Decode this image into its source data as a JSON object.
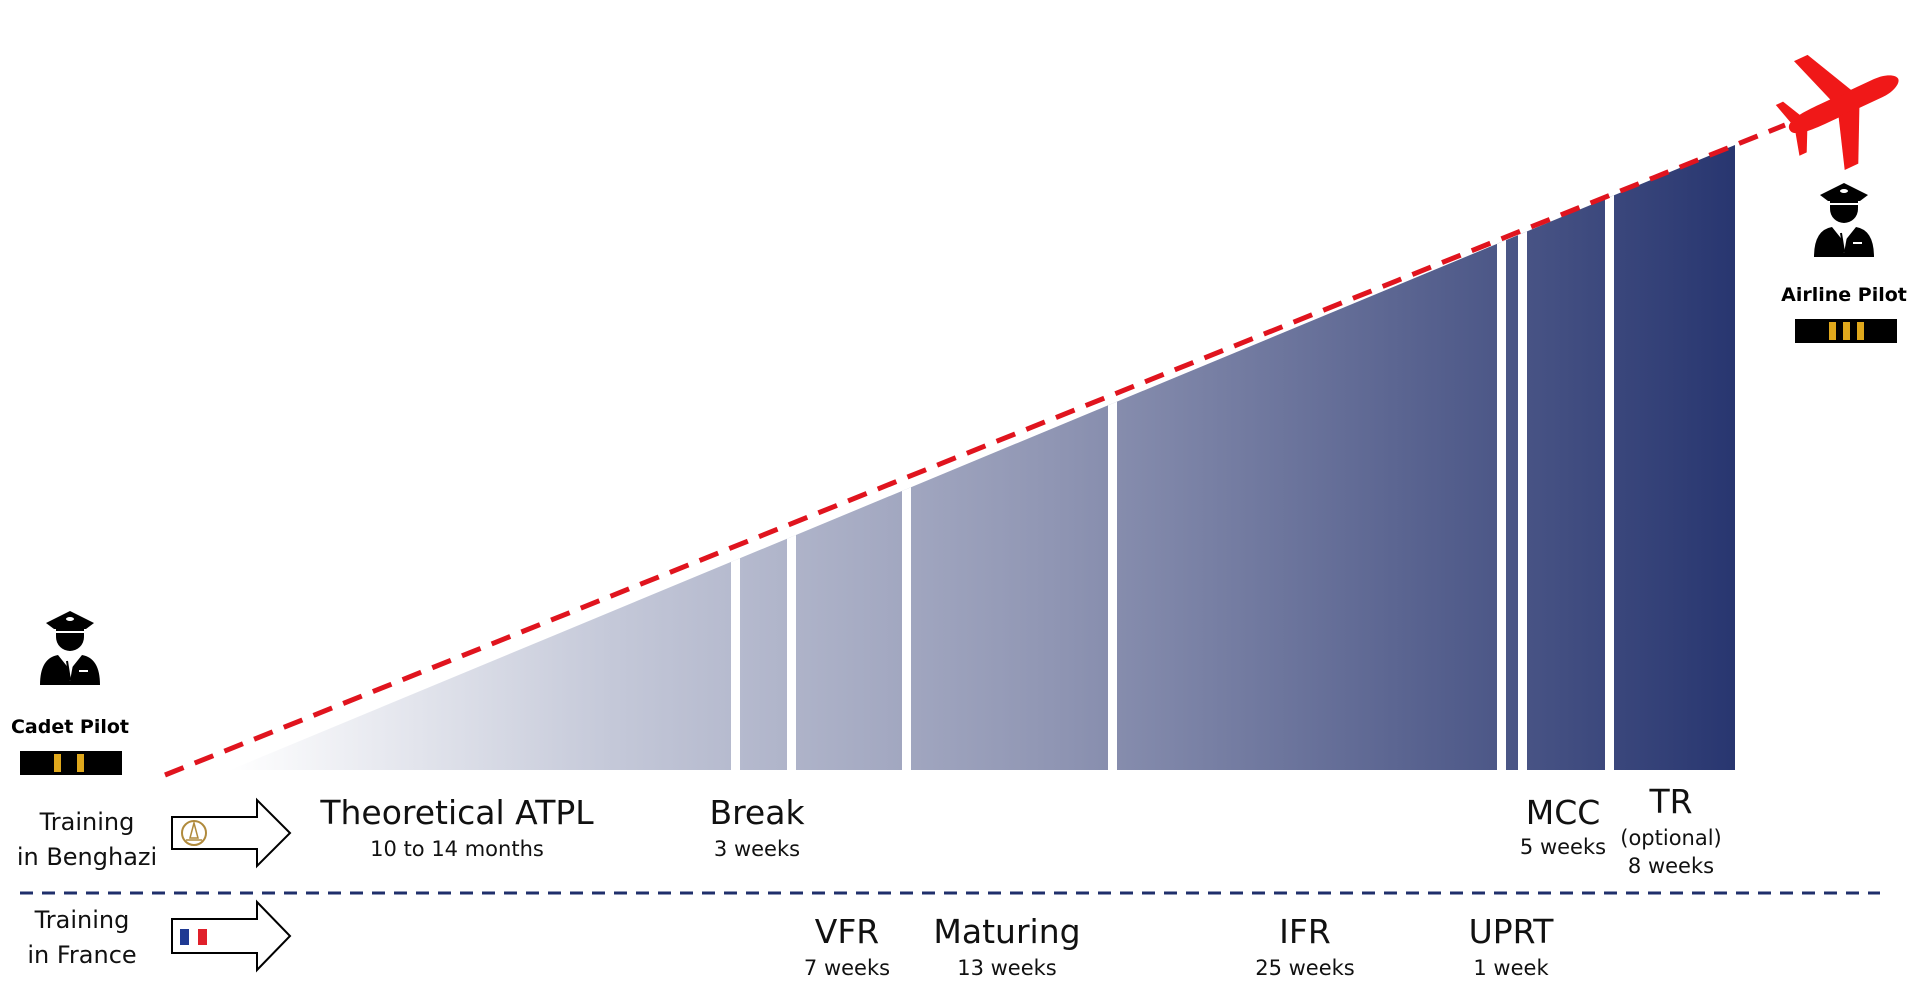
{
  "roles": {
    "start": {
      "label": "Cadet Pilot",
      "stripes": 2
    },
    "end": {
      "label": "Airline Pilot",
      "stripes": 3
    }
  },
  "tracks": {
    "benghazi": {
      "line1": "Training",
      "line2": "in Benghazi",
      "flag_icon": "academy-logo-icon"
    },
    "france": {
      "line1": "Training",
      "line2": "in France",
      "flag_icon": "french-flag-icon"
    }
  },
  "phases_benghazi": [
    {
      "title": "Theoretical ATPL",
      "duration": "10 to 14 months"
    },
    {
      "title": "Break",
      "duration": "3 weeks"
    },
    {
      "title": "MCC",
      "duration": "5 weeks"
    },
    {
      "title": "TR",
      "note": "(optional)",
      "duration": "8 weeks"
    }
  ],
  "phases_france": [
    {
      "title": "VFR",
      "duration": "7 weeks"
    },
    {
      "title": "Maturing",
      "duration": "13 weeks"
    },
    {
      "title": "IFR",
      "duration": "25 weeks"
    },
    {
      "title": "UPRT",
      "duration": "1 week"
    }
  ],
  "colors": {
    "gradient_start": "#ffffff",
    "gradient_end": "#283670",
    "trend_line": "#e0141e",
    "divider": "#1f2f6b",
    "stripe_gold": "#e0a81c"
  }
}
